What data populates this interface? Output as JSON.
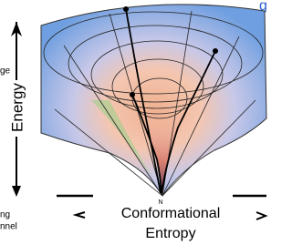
{
  "title_fragment": "g",
  "left_fragment": "ge",
  "y_label": "Energy",
  "x_label_lines": [
    "Conformational",
    "Entropy"
  ],
  "bottom_left_fragments": [
    "ng",
    "nnel"
  ],
  "native_label": "N"
}
